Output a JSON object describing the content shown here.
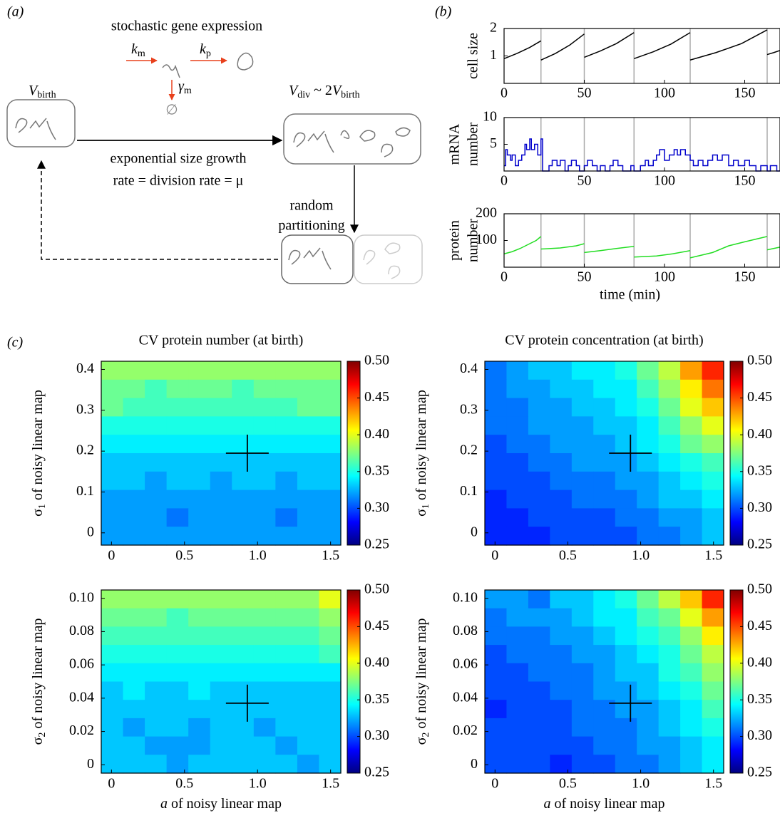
{
  "panel_labels": [
    "(a)",
    "(b)",
    "(c)"
  ],
  "diagram": {
    "title": "stochastic gene expression",
    "km": {
      "main": "k",
      "sub": "m"
    },
    "kp": {
      "main": "k",
      "sub": "p"
    },
    "gamma": {
      "main": "γ",
      "sub": "m"
    },
    "empty": "∅",
    "v_birth": {
      "main": "V",
      "sub": "birth"
    },
    "v_div": {
      "main": "V",
      "sub": "div",
      "mid": " ~ 2",
      "main2": "V",
      "sub2": "birth"
    },
    "growth": [
      "exponential size growth",
      "rate = division rate = μ"
    ],
    "partition": [
      "random",
      "partitioning"
    ]
  },
  "chart_data": [
    {
      "type": "line",
      "ylabel": [
        "cell size"
      ],
      "xlim": [
        0,
        172
      ],
      "ylim": [
        0,
        2
      ],
      "xticks": [
        0,
        50,
        100,
        150
      ],
      "yticks": [
        1,
        2
      ],
      "divisions": [
        23,
        50,
        81,
        116,
        164
      ],
      "division_color": "#aaaaaa",
      "step": false,
      "series": [
        {
          "color": "#000000",
          "x": [
            0,
            8,
            16,
            23,
            23,
            23,
            32,
            41,
            50,
            50,
            50,
            60,
            70,
            81,
            81,
            81,
            93,
            104,
            116,
            116,
            116,
            132,
            148,
            164,
            164,
            164,
            168,
            172
          ],
          "values": [
            0.9,
            1.09,
            1.31,
            1.55,
            null,
            0.85,
            1.09,
            1.4,
            1.8,
            null,
            0.95,
            1.18,
            1.45,
            1.85,
            null,
            0.9,
            1.15,
            1.43,
            1.85,
            null,
            0.85,
            1.12,
            1.45,
            1.95,
            null,
            1.05,
            1.12,
            1.2
          ]
        }
      ]
    },
    {
      "type": "line",
      "ylabel": [
        "mRNA",
        "number"
      ],
      "xlim": [
        0,
        172
      ],
      "ylim": [
        0,
        10
      ],
      "xticks": [
        0,
        50,
        100,
        150
      ],
      "yticks": [
        5,
        10
      ],
      "divisions": [
        23,
        50,
        81,
        116,
        164
      ],
      "division_color": "#aaaaaa",
      "step": true,
      "series": [
        {
          "color": "#0000cc",
          "x": [
            0,
            1,
            2,
            4,
            5,
            7,
            9,
            11,
            13,
            14,
            16,
            17,
            19,
            21,
            23,
            24,
            28,
            30,
            33,
            35,
            38,
            40,
            42,
            45,
            47,
            50,
            52,
            55,
            58,
            60,
            63,
            66,
            68,
            71,
            74,
            76,
            79,
            81,
            85,
            88,
            90,
            93,
            95,
            97,
            100,
            103,
            106,
            108,
            110,
            113,
            116,
            118,
            121,
            124,
            127,
            130,
            133,
            136,
            140,
            143,
            146,
            150,
            153,
            157,
            160,
            164,
            166,
            170
          ],
          "values": [
            1,
            4,
            3,
            2,
            3,
            1,
            2,
            3,
            5,
            4,
            6,
            4,
            5,
            3,
            6,
            0,
            1,
            2,
            1,
            2,
            0,
            1,
            2,
            1,
            0,
            1,
            2,
            1,
            0,
            1,
            0,
            1,
            2,
            1,
            0,
            0,
            1,
            0,
            1,
            2,
            1,
            2,
            3,
            4,
            2,
            3,
            4,
            3,
            4,
            3,
            2,
            1,
            2,
            1,
            2,
            3,
            2,
            3,
            1,
            2,
            1,
            2,
            1,
            0,
            1,
            0,
            1,
            0
          ]
        }
      ]
    },
    {
      "type": "line",
      "ylabel": [
        "protein",
        "number"
      ],
      "xlabel": "time (min)",
      "xlim": [
        0,
        172
      ],
      "ylim": [
        0,
        200
      ],
      "xticks": [
        0,
        50,
        100,
        150
      ],
      "yticks": [
        100,
        200
      ],
      "divisions": [
        23,
        50,
        81,
        116,
        164
      ],
      "division_color": "#aaaaaa",
      "step": false,
      "series": [
        {
          "color": "#22dd22",
          "x": [
            0,
            5,
            10,
            15,
            20,
            23,
            23,
            23,
            35,
            45,
            50,
            50,
            50,
            60,
            70,
            81,
            81,
            81,
            95,
            105,
            116,
            116,
            116,
            130,
            140,
            150,
            164,
            164,
            164,
            172
          ],
          "values": [
            50,
            58,
            70,
            85,
            100,
            115,
            null,
            68,
            72,
            80,
            88,
            null,
            55,
            62,
            70,
            78,
            null,
            38,
            42,
            50,
            62,
            null,
            35,
            55,
            80,
            95,
            115,
            null,
            65,
            75
          ]
        }
      ]
    },
    {
      "type": "heatmap",
      "title": "CV protein number (at birth)",
      "ylabel": {
        "symbol": "σ",
        "sub": "1",
        "text": " of noisy linear map"
      },
      "xlim": [
        -0.07,
        1.57
      ],
      "ylim": [
        -0.03,
        0.42
      ],
      "xticks": [
        0,
        0.5,
        {
          "value": 1,
          "label": "1.0"
        },
        1.5
      ],
      "yticks": [
        0,
        0.1,
        0.2,
        0.3,
        0.4
      ],
      "clim": [
        0.25,
        0.5
      ],
      "cticks": [
        {
          "value": 0.25,
          "label": "0.25"
        },
        {
          "value": 0.3,
          "label": "0.30"
        },
        {
          "value": 0.35,
          "label": "0.35"
        },
        {
          "value": 0.4,
          "label": "0.40"
        },
        {
          "value": 0.45,
          "label": "0.45"
        },
        {
          "value": 0.5,
          "label": "0.50"
        }
      ],
      "colormap": "jet",
      "marker": {
        "x": 0.93,
        "y": 0.195
      },
      "z": [
        [
          0.38,
          0.38,
          0.38,
          0.38,
          0.38,
          0.38,
          0.38,
          0.38,
          0.38,
          0.38,
          0.38
        ],
        [
          0.37,
          0.37,
          0.36,
          0.37,
          0.37,
          0.37,
          0.36,
          0.37,
          0.37,
          0.37,
          0.37
        ],
        [
          0.37,
          0.36,
          0.36,
          0.36,
          0.36,
          0.36,
          0.36,
          0.36,
          0.36,
          0.37,
          0.37
        ],
        [
          0.35,
          0.35,
          0.35,
          0.35,
          0.35,
          0.35,
          0.35,
          0.35,
          0.35,
          0.35,
          0.35
        ],
        [
          0.34,
          0.34,
          0.34,
          0.34,
          0.34,
          0.34,
          0.34,
          0.34,
          0.34,
          0.34,
          0.34
        ],
        [
          0.33,
          0.33,
          0.33,
          0.33,
          0.33,
          0.33,
          0.33,
          0.33,
          0.33,
          0.33,
          0.33
        ],
        [
          0.33,
          0.33,
          0.32,
          0.33,
          0.33,
          0.32,
          0.33,
          0.33,
          0.32,
          0.33,
          0.33
        ],
        [
          0.32,
          0.32,
          0.32,
          0.32,
          0.32,
          0.32,
          0.32,
          0.32,
          0.32,
          0.32,
          0.32
        ],
        [
          0.32,
          0.32,
          0.32,
          0.31,
          0.32,
          0.32,
          0.32,
          0.32,
          0.31,
          0.32,
          0.32
        ],
        [
          0.32,
          0.32,
          0.32,
          0.32,
          0.32,
          0.32,
          0.32,
          0.32,
          0.32,
          0.32,
          0.32
        ]
      ]
    },
    {
      "type": "heatmap",
      "title": "CV protein concentration (at birth)",
      "ylabel": {
        "symbol": "σ",
        "sub": "1",
        "text": " of noisy linear map"
      },
      "xlim": [
        -0.07,
        1.57
      ],
      "ylim": [
        -0.03,
        0.42
      ],
      "xticks": [
        0,
        0.5,
        {
          "value": 1,
          "label": "1.0"
        },
        1.5
      ],
      "yticks": [
        0,
        0.1,
        0.2,
        0.3,
        0.4
      ],
      "clim": [
        0.25,
        0.5
      ],
      "cticks": [
        {
          "value": 0.25,
          "label": "0.25"
        },
        {
          "value": 0.3,
          "label": "0.30"
        },
        {
          "value": 0.35,
          "label": "0.35"
        },
        {
          "value": 0.4,
          "label": "0.40"
        },
        {
          "value": 0.45,
          "label": "0.45"
        },
        {
          "value": 0.5,
          "label": "0.50"
        }
      ],
      "colormap": "jet",
      "marker": {
        "x": 0.93,
        "y": 0.195
      },
      "z": [
        [
          0.31,
          0.32,
          0.33,
          0.33,
          0.34,
          0.34,
          0.35,
          0.37,
          0.39,
          0.43,
          0.46
        ],
        [
          0.31,
          0.32,
          0.32,
          0.33,
          0.33,
          0.34,
          0.34,
          0.36,
          0.38,
          0.41,
          0.44
        ],
        [
          0.31,
          0.31,
          0.32,
          0.32,
          0.33,
          0.33,
          0.34,
          0.35,
          0.37,
          0.4,
          0.42
        ],
        [
          0.31,
          0.31,
          0.32,
          0.32,
          0.32,
          0.33,
          0.33,
          0.34,
          0.36,
          0.38,
          0.4
        ],
        [
          0.3,
          0.31,
          0.31,
          0.32,
          0.32,
          0.32,
          0.33,
          0.34,
          0.35,
          0.37,
          0.38
        ],
        [
          0.3,
          0.3,
          0.31,
          0.31,
          0.32,
          0.32,
          0.32,
          0.33,
          0.34,
          0.35,
          0.36
        ],
        [
          0.3,
          0.3,
          0.3,
          0.31,
          0.31,
          0.31,
          0.32,
          0.32,
          0.33,
          0.34,
          0.35
        ],
        [
          0.29,
          0.3,
          0.3,
          0.3,
          0.31,
          0.31,
          0.31,
          0.32,
          0.33,
          0.33,
          0.34
        ],
        [
          0.29,
          0.29,
          0.3,
          0.3,
          0.3,
          0.3,
          0.31,
          0.31,
          0.32,
          0.32,
          0.33
        ],
        [
          0.29,
          0.29,
          0.29,
          0.3,
          0.3,
          0.3,
          0.3,
          0.31,
          0.31,
          0.32,
          0.33
        ]
      ]
    },
    {
      "type": "heatmap",
      "ylabel": {
        "symbol": "σ",
        "sub": "2",
        "text": " of noisy linear map"
      },
      "xlabel": {
        "symbol": "a",
        "text": " of noisy linear map"
      },
      "xlim": [
        -0.07,
        1.57
      ],
      "ylim": [
        -0.005,
        0.105
      ],
      "xticks": [
        0,
        0.5,
        {
          "value": 1,
          "label": "1.0"
        },
        1.5
      ],
      "yticks": [
        0,
        0.02,
        0.04,
        0.06,
        0.08,
        {
          "value": 0.1,
          "label": "0.10"
        }
      ],
      "clim": [
        0.25,
        0.5
      ],
      "cticks": [
        {
          "value": 0.25,
          "label": "0.25"
        },
        {
          "value": 0.3,
          "label": "0.30"
        },
        {
          "value": 0.35,
          "label": "0.35"
        },
        {
          "value": 0.4,
          "label": "0.40"
        },
        {
          "value": 0.45,
          "label": "0.45"
        },
        {
          "value": 0.5,
          "label": "0.50"
        }
      ],
      "colormap": "jet",
      "marker": {
        "x": 0.93,
        "y": 0.037
      },
      "z": [
        [
          0.38,
          0.38,
          0.38,
          0.38,
          0.38,
          0.38,
          0.38,
          0.38,
          0.38,
          0.38,
          0.4
        ],
        [
          0.37,
          0.37,
          0.37,
          0.36,
          0.37,
          0.37,
          0.37,
          0.37,
          0.37,
          0.37,
          0.38
        ],
        [
          0.36,
          0.36,
          0.36,
          0.36,
          0.36,
          0.36,
          0.36,
          0.36,
          0.36,
          0.36,
          0.37
        ],
        [
          0.35,
          0.35,
          0.35,
          0.35,
          0.35,
          0.35,
          0.35,
          0.35,
          0.35,
          0.35,
          0.36
        ],
        [
          0.34,
          0.34,
          0.34,
          0.34,
          0.34,
          0.34,
          0.34,
          0.34,
          0.34,
          0.34,
          0.34
        ],
        [
          0.33,
          0.34,
          0.33,
          0.33,
          0.34,
          0.33,
          0.33,
          0.33,
          0.33,
          0.33,
          0.33
        ],
        [
          0.33,
          0.33,
          0.33,
          0.33,
          0.33,
          0.33,
          0.33,
          0.33,
          0.33,
          0.33,
          0.33
        ],
        [
          0.33,
          0.32,
          0.33,
          0.33,
          0.32,
          0.33,
          0.33,
          0.32,
          0.33,
          0.33,
          0.33
        ],
        [
          0.33,
          0.33,
          0.32,
          0.32,
          0.32,
          0.33,
          0.33,
          0.33,
          0.32,
          0.33,
          0.33
        ],
        [
          0.33,
          0.33,
          0.33,
          0.32,
          0.33,
          0.33,
          0.33,
          0.33,
          0.33,
          0.32,
          0.33
        ]
      ]
    },
    {
      "type": "heatmap",
      "ylabel": {
        "symbol": "σ",
        "sub": "2",
        "text": " of noisy linear map"
      },
      "xlabel": {
        "symbol": "a",
        "text": " of noisy linear map"
      },
      "xlim": [
        -0.07,
        1.57
      ],
      "ylim": [
        -0.005,
        0.105
      ],
      "xticks": [
        0,
        0.5,
        {
          "value": 1,
          "label": "1.0"
        },
        1.5
      ],
      "yticks": [
        0,
        0.02,
        0.04,
        0.06,
        0.08,
        {
          "value": 0.1,
          "label": "0.10"
        }
      ],
      "clim": [
        0.25,
        0.5
      ],
      "cticks": [
        {
          "value": 0.25,
          "label": "0.25"
        },
        {
          "value": 0.3,
          "label": "0.30"
        },
        {
          "value": 0.35,
          "label": "0.35"
        },
        {
          "value": 0.4,
          "label": "0.40"
        },
        {
          "value": 0.45,
          "label": "0.45"
        },
        {
          "value": 0.5,
          "label": "0.50"
        }
      ],
      "colormap": "jet",
      "marker": {
        "x": 0.93,
        "y": 0.037
      },
      "z": [
        [
          0.32,
          0.32,
          0.31,
          0.33,
          0.33,
          0.34,
          0.35,
          0.37,
          0.39,
          0.42,
          0.46
        ],
        [
          0.31,
          0.32,
          0.32,
          0.32,
          0.33,
          0.34,
          0.34,
          0.36,
          0.37,
          0.4,
          0.43
        ],
        [
          0.31,
          0.31,
          0.31,
          0.32,
          0.32,
          0.33,
          0.34,
          0.35,
          0.36,
          0.38,
          0.41
        ],
        [
          0.3,
          0.31,
          0.31,
          0.31,
          0.32,
          0.32,
          0.33,
          0.34,
          0.35,
          0.37,
          0.39
        ],
        [
          0.3,
          0.3,
          0.31,
          0.31,
          0.31,
          0.32,
          0.33,
          0.33,
          0.35,
          0.36,
          0.38
        ],
        [
          0.3,
          0.3,
          0.3,
          0.31,
          0.31,
          0.32,
          0.32,
          0.33,
          0.34,
          0.35,
          0.37
        ],
        [
          0.29,
          0.3,
          0.3,
          0.3,
          0.31,
          0.31,
          0.32,
          0.32,
          0.33,
          0.34,
          0.36
        ],
        [
          0.3,
          0.3,
          0.3,
          0.3,
          0.31,
          0.31,
          0.31,
          0.32,
          0.33,
          0.34,
          0.35
        ],
        [
          0.3,
          0.3,
          0.3,
          0.3,
          0.3,
          0.31,
          0.31,
          0.32,
          0.32,
          0.33,
          0.34
        ],
        [
          0.3,
          0.3,
          0.3,
          0.29,
          0.3,
          0.3,
          0.31,
          0.31,
          0.32,
          0.33,
          0.34
        ]
      ]
    }
  ]
}
